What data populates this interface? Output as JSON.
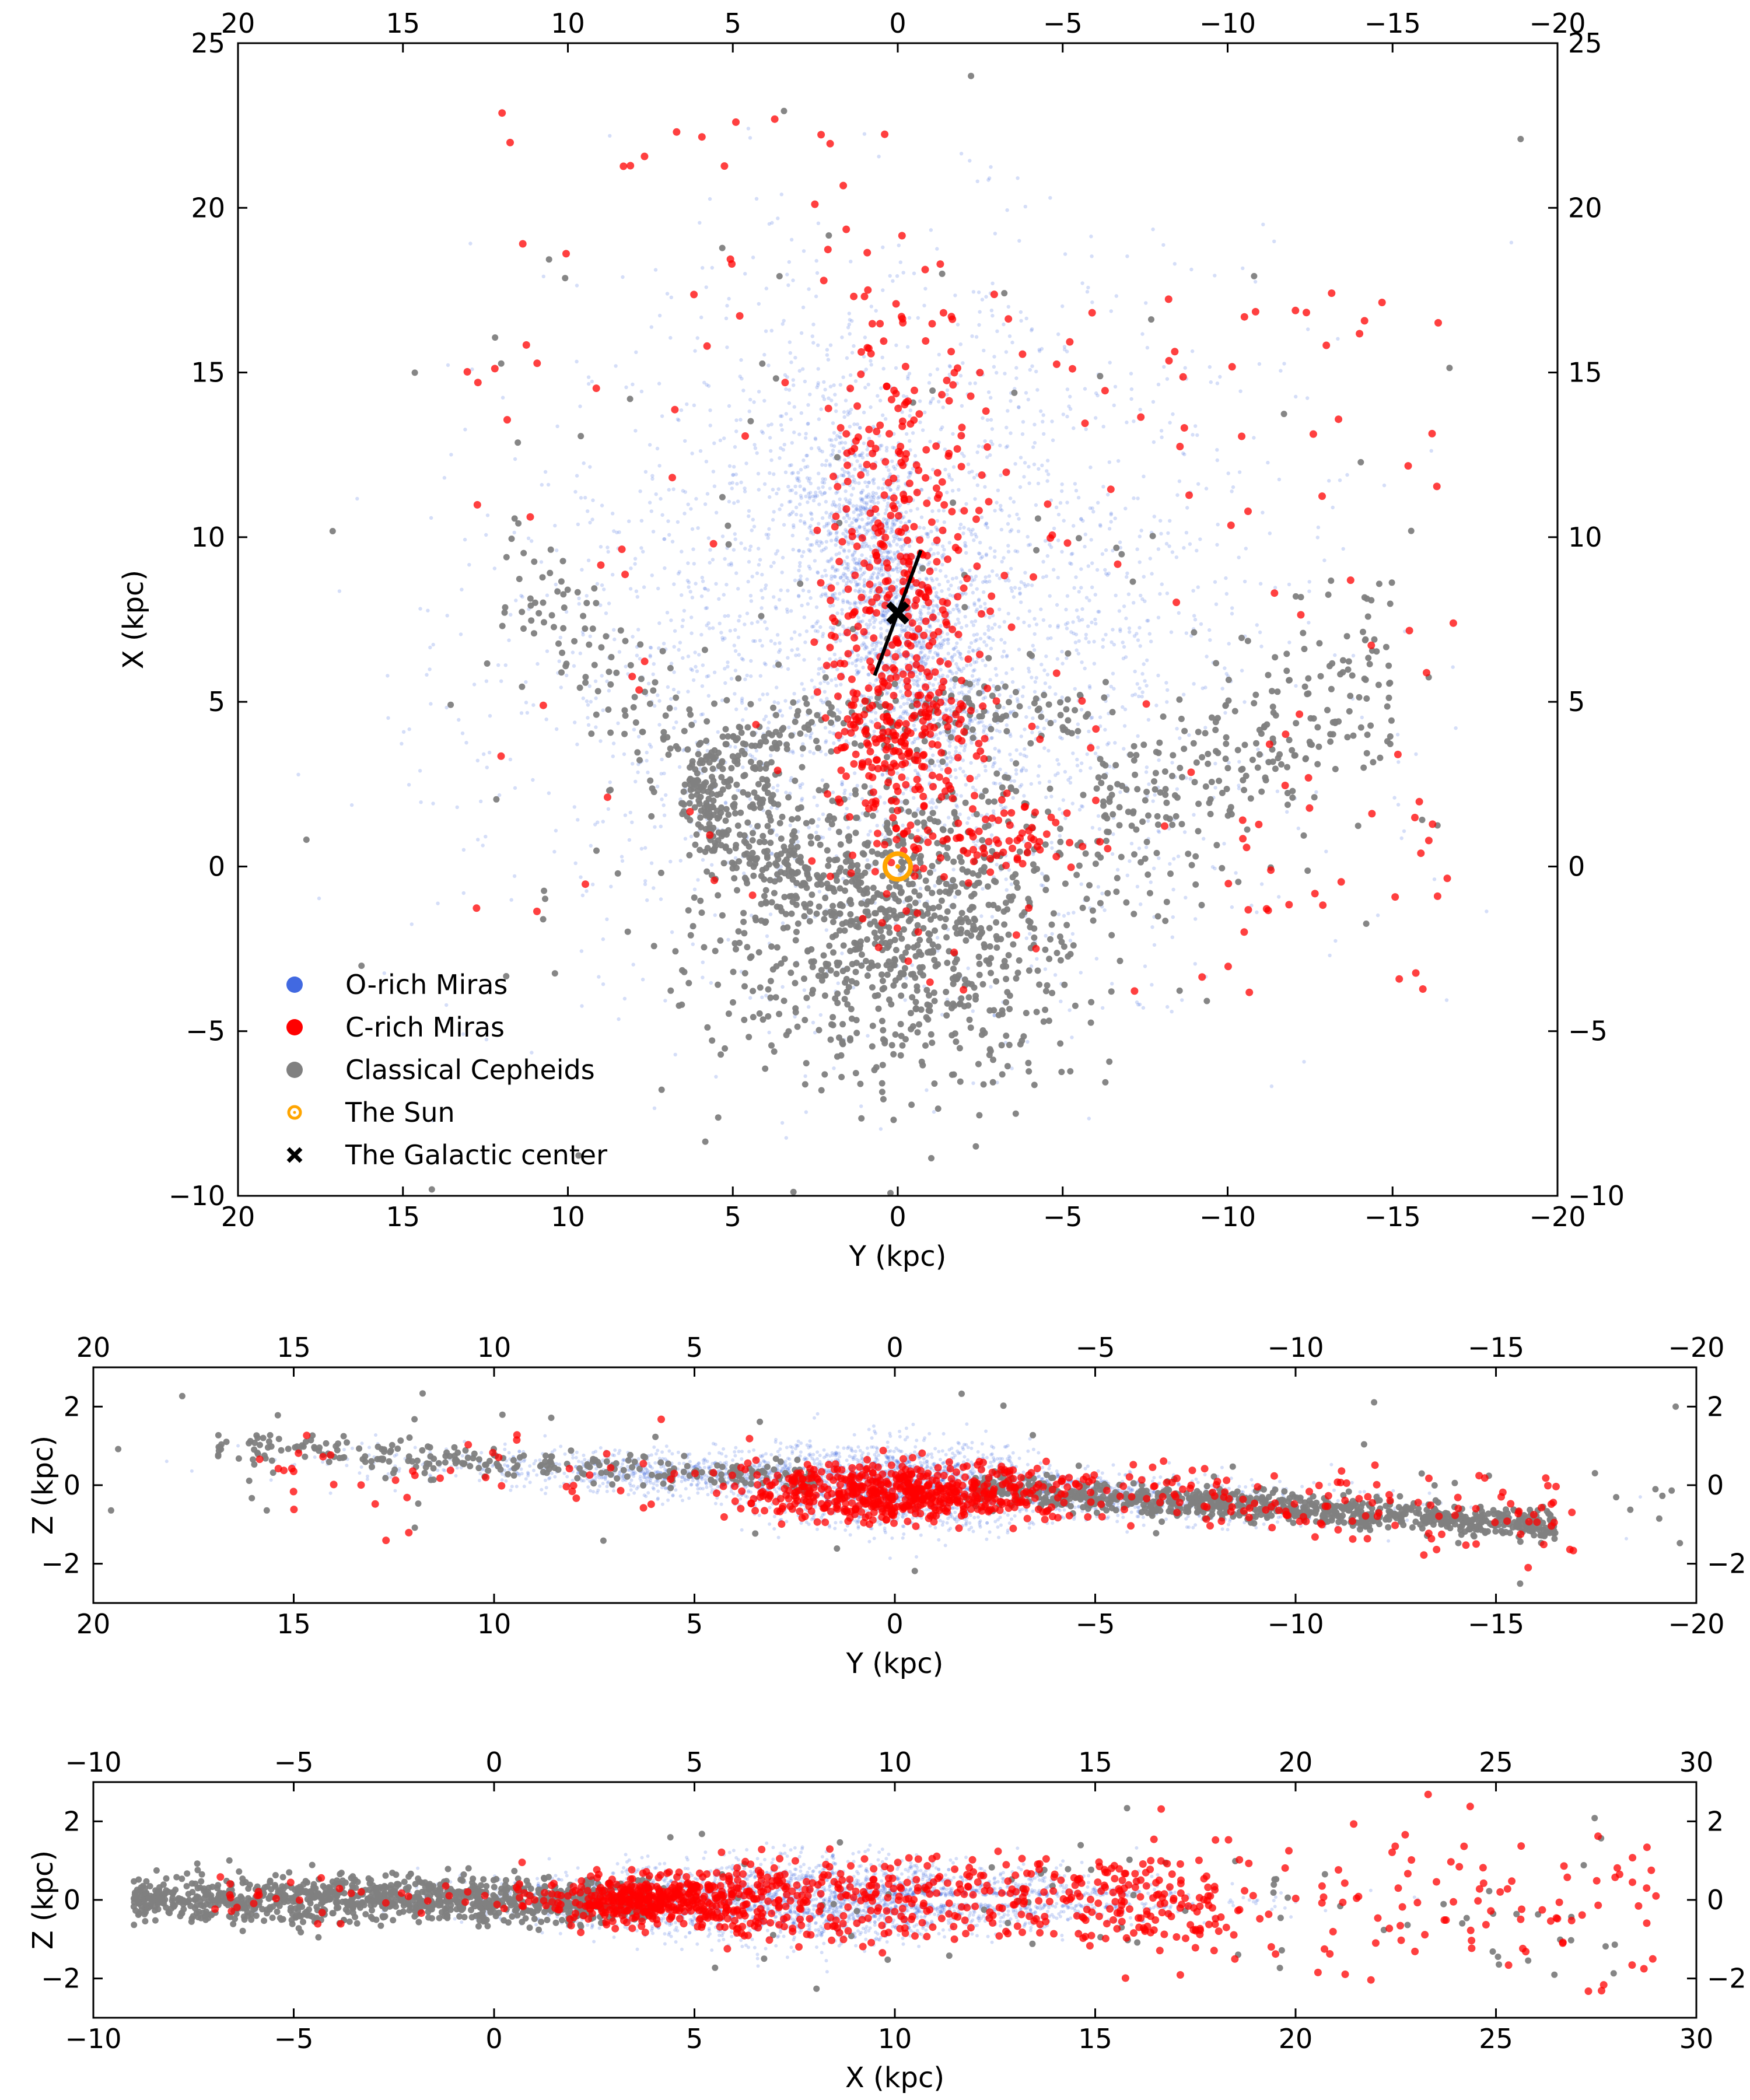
{
  "figure": {
    "legend": [
      {
        "label": "O-rich Miras",
        "color": "#4169e1",
        "marker": "dot"
      },
      {
        "label": "C-rich Miras",
        "color": "#ff0000",
        "marker": "dot"
      },
      {
        "label": "Classical Cepheids",
        "color": "#808080",
        "marker": "dot"
      },
      {
        "label": "The Sun",
        "color": "#ffa500",
        "marker": "sun"
      },
      {
        "label": "The Galactic center",
        "color": "#000000",
        "marker": "x"
      }
    ]
  },
  "chart_data": [
    {
      "type": "scatter",
      "id": "xy",
      "title": "",
      "xlabel": "Y (kpc)",
      "ylabel": "X (kpc)",
      "xlim": [
        20,
        -20
      ],
      "ylim": [
        -10,
        25
      ],
      "xticks": [
        20,
        15,
        10,
        5,
        0,
        -5,
        -10,
        -15,
        -20
      ],
      "yticks": [
        -10,
        -5,
        0,
        5,
        10,
        15,
        20,
        25
      ],
      "mirror_ticks": true,
      "series": [
        {
          "name": "O-rich Miras",
          "color": "#4169e1",
          "distribution": "bar-dominated cloud centered near (Y=0, X=8), spread roughly Y in [-15, 15], X in [-8, 24]"
        },
        {
          "name": "C-rich Miras",
          "color": "#ff0000",
          "distribution": "concentrated along the bar near Y=0, X 0 to 22, sparse elsewhere"
        },
        {
          "name": "Classical Cepheids",
          "color": "#808080",
          "distribution": "disk population around the Sun, X from -9 to 12, spiral-arm structure"
        }
      ],
      "points": {
        "sun": {
          "x": 0,
          "y": 0
        },
        "galactic_center": {
          "x": 0,
          "y": 7.7
        },
        "bar": {
          "from": {
            "x": 0.7,
            "y": 5.8
          },
          "to": {
            "x": -0.7,
            "y": 9.6
          }
        }
      }
    },
    {
      "type": "scatter",
      "id": "yz",
      "title": "",
      "xlabel": "Y (kpc)",
      "ylabel": "Z (kpc)",
      "xlim": [
        20,
        -20
      ],
      "ylim": [
        -3,
        3
      ],
      "xticks": [
        20,
        15,
        10,
        5,
        0,
        -5,
        -10,
        -15,
        -20
      ],
      "yticks": [
        -2,
        0,
        2
      ],
      "mirror_ticks": true,
      "series": [
        {
          "name": "O-rich Miras",
          "color": "#4169e1",
          "distribution": "thin disk along Z~0 with a central bulge near Y=0, slight tilt toward negative Z at negative Y"
        },
        {
          "name": "C-rich Miras",
          "color": "#ff0000",
          "distribution": "central concentration near Y=0, scattered along the disk"
        },
        {
          "name": "Classical Cepheids",
          "color": "#808080",
          "distribution": "warped thin disk, Z ~ +1 at Y=15 to Z ~ -1 at Y=-15"
        }
      ]
    },
    {
      "type": "scatter",
      "id": "xz",
      "title": "",
      "xlabel": "X (kpc)",
      "ylabel": "Z (kpc)",
      "xlim": [
        -10,
        30
      ],
      "ylim": [
        -3,
        3
      ],
      "xticks": [
        -10,
        -5,
        0,
        5,
        10,
        15,
        20,
        25,
        30
      ],
      "yticks": [
        -2,
        0,
        2
      ],
      "mirror_ticks": true,
      "series": [
        {
          "name": "O-rich Miras",
          "color": "#4169e1",
          "distribution": "thick lens centered near X=8, Z~0, with a thin dust gap along Z~0 from X 10 to 17"
        },
        {
          "name": "C-rich Miras",
          "color": "#ff0000",
          "distribution": "dense clump near X=4, Z=0, extending toward X=28"
        },
        {
          "name": "Classical Cepheids",
          "color": "#808080",
          "distribution": "thin disk at X from -9 to 4, Z near 0"
        }
      ]
    }
  ]
}
